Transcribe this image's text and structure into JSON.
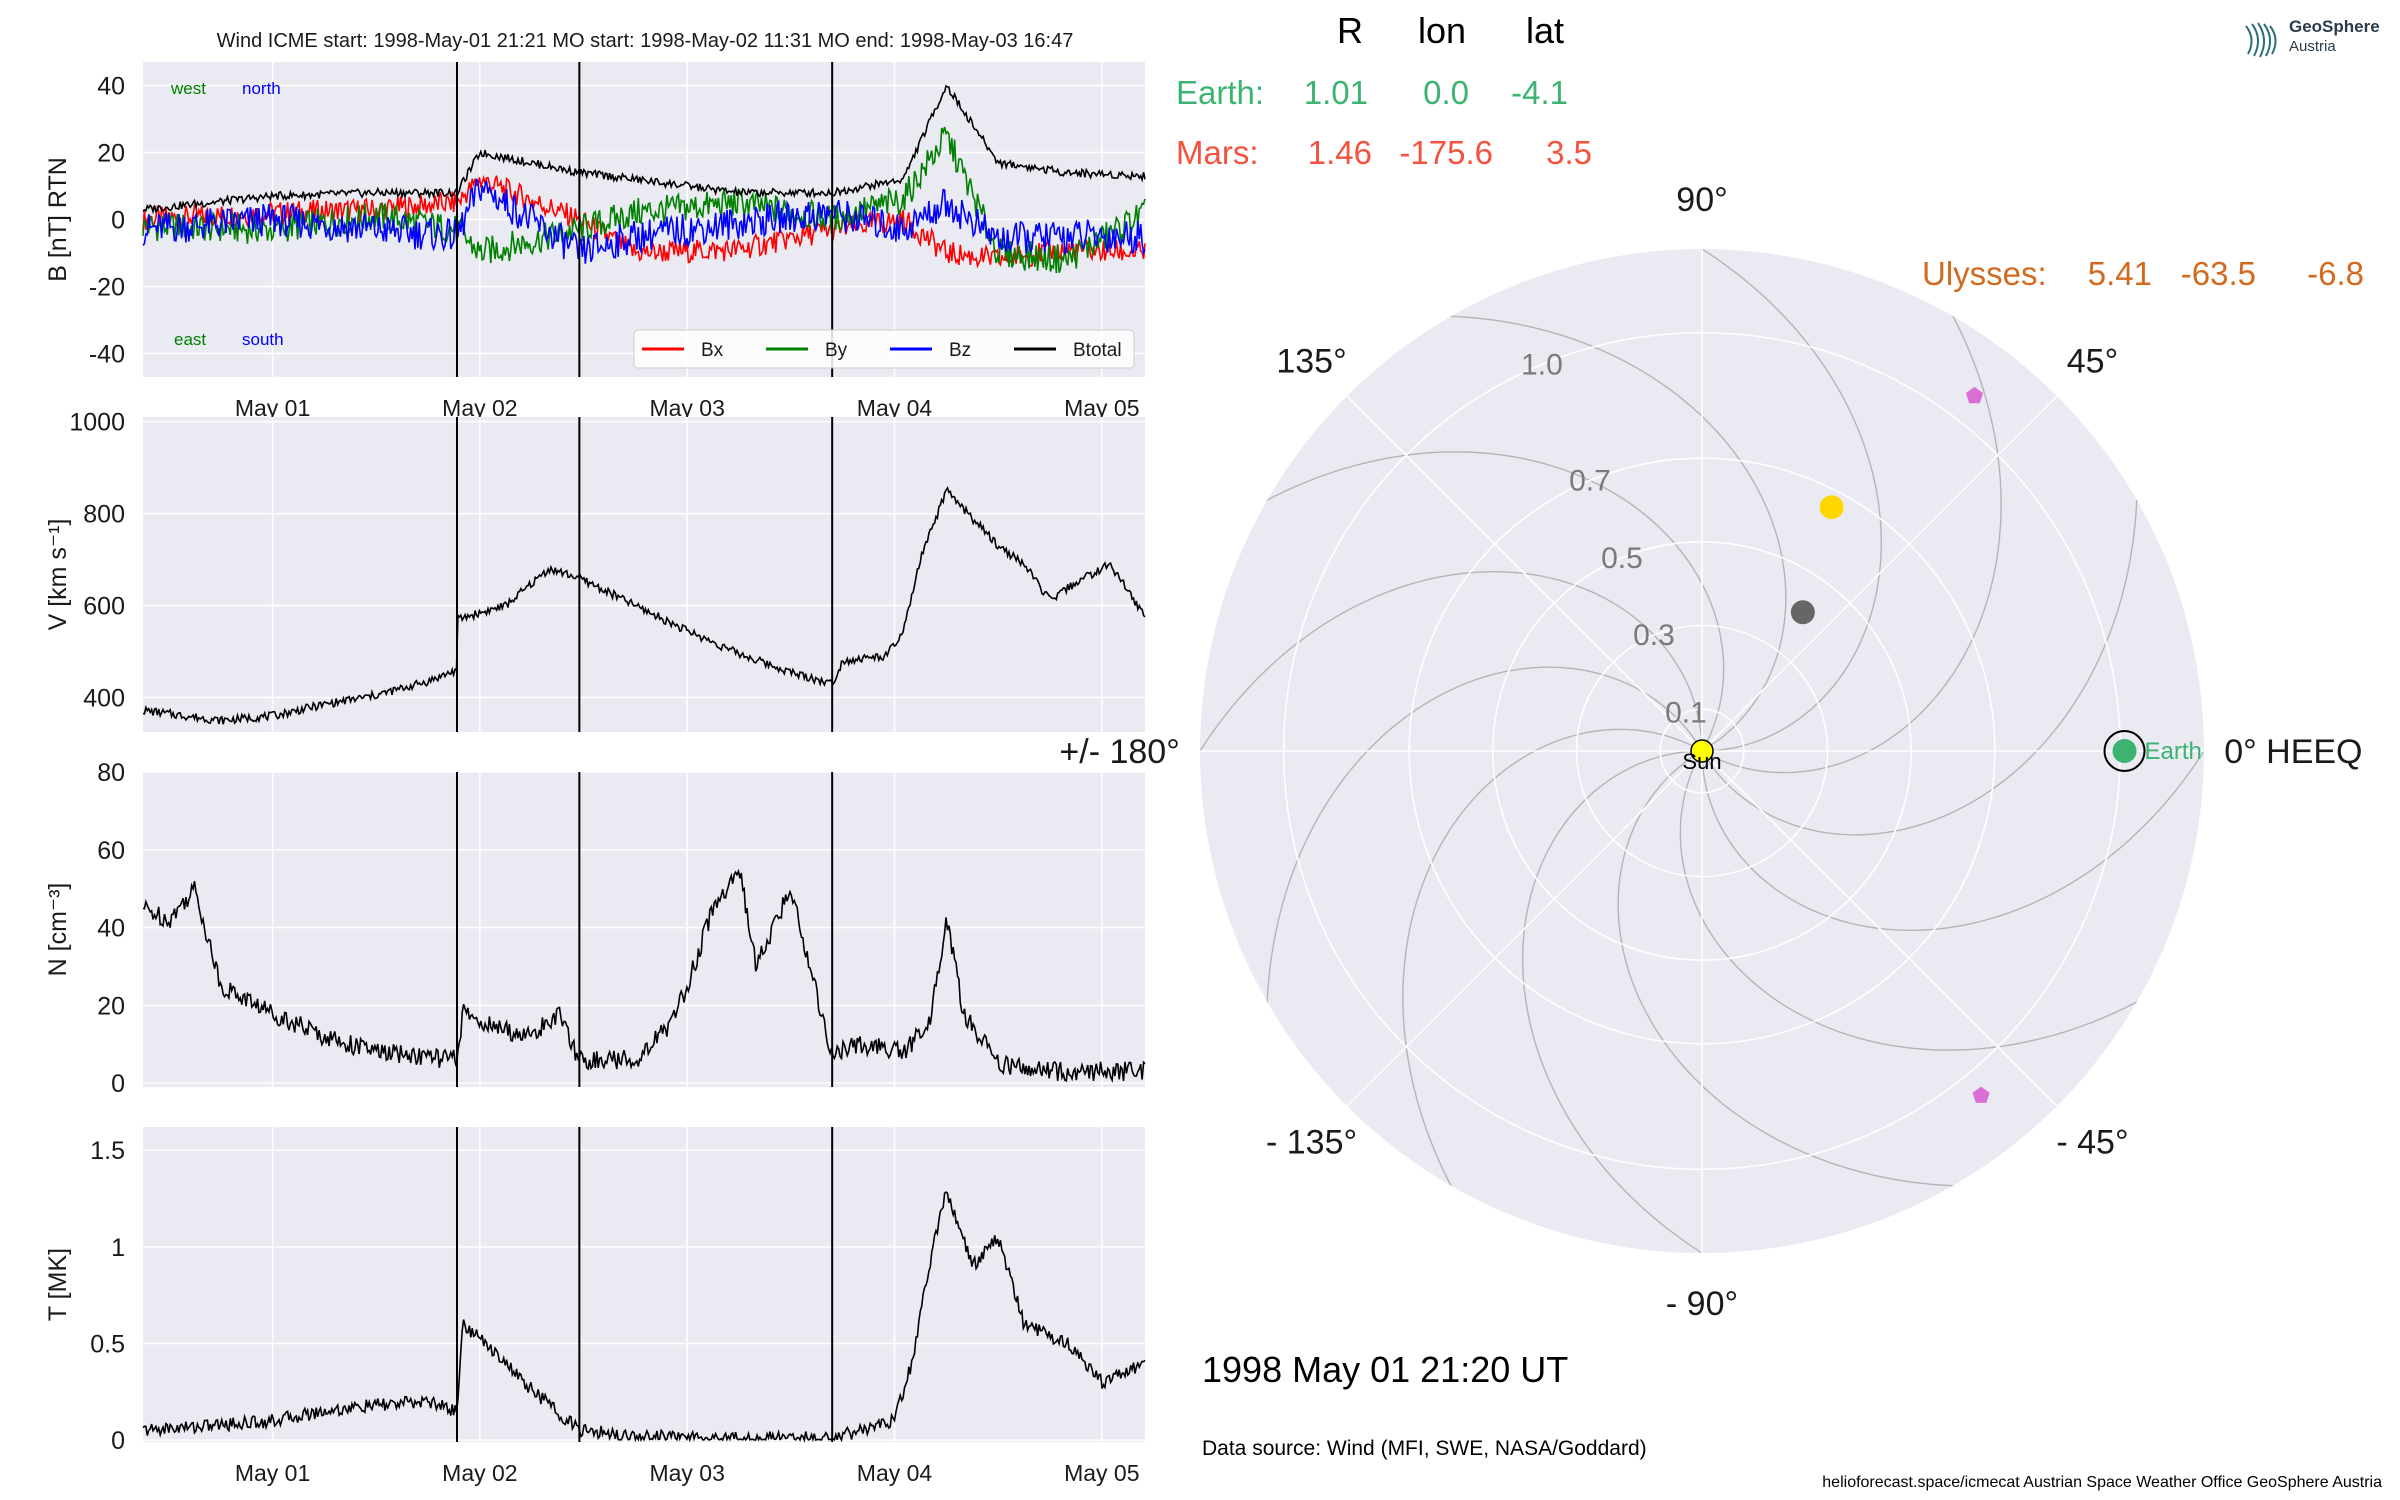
{
  "window": {
    "title": "Wind    ICME start: 1998-May-01 21:21   MO start: 1998-May-02 11:31   MO end: 1998-May-03 16:47"
  },
  "logo": {
    "line1": "GeoSphere",
    "line2": "Austria"
  },
  "colors": {
    "panel_bg": "#eaeaf2",
    "grid": "#ffffff",
    "bx": "#ff0000",
    "by": "#008000",
    "bz": "#0000ff",
    "btotal": "#000000",
    "earth": "#3cb371",
    "mars": "#f4513f",
    "ulysses": "#d2691e",
    "sun": "#ffff00",
    "planet_gray": "#666666",
    "planet_yellow": "#ffd700",
    "probe": "#da70d6"
  },
  "chart_data": [
    {
      "type": "line",
      "title": "Wind    ICME start: 1998-May-01 21:21   MO start: 1998-May-02 11:31   MO end: 1998-May-03 16:47",
      "ylabel": "B [nT] RTN",
      "ylim": [
        -47,
        47
      ],
      "yticks": [
        40,
        20,
        0,
        -20,
        -40
      ],
      "xlim": [
        "1998-04-30 09:00",
        "1998-05-05 05:00"
      ],
      "xticks": [
        "May 01",
        "May 02",
        "May 03",
        "May 04",
        "May 05"
      ],
      "annotations": {
        "west": "west",
        "north": "north",
        "east": "east",
        "south": "south"
      },
      "legend": {
        "placement": "lower-right",
        "entries": [
          "Bx",
          "By",
          "Bz",
          "Btotal"
        ]
      },
      "event_lines": [
        "1998-05-01 21:21",
        "1998-05-02 11:31",
        "1998-05-03 16:47"
      ],
      "x": [
        "1998-04-30 09:00",
        "1998-05-01 00:00",
        "1998-05-01 12:00",
        "1998-05-01 21:21",
        "1998-05-02 00:00",
        "1998-05-02 11:31",
        "1998-05-02 18:00",
        "1998-05-03 06:00",
        "1998-05-03 16:47",
        "1998-05-04 01:00",
        "1998-05-04 06:00",
        "1998-05-04 12:00",
        "1998-05-04 20:00",
        "1998-05-05 05:00"
      ],
      "series": [
        {
          "name": "Bx",
          "values": [
            0,
            2,
            3,
            5,
            12,
            0,
            -10,
            -9,
            -3,
            0,
            -10,
            -12,
            -9,
            -10
          ]
        },
        {
          "name": "By",
          "values": [
            -2,
            -3,
            1,
            -3,
            -10,
            -3,
            2,
            5,
            0,
            6,
            25,
            -10,
            -12,
            2
          ]
        },
        {
          "name": "Bz",
          "values": [
            -3,
            0,
            -3,
            -5,
            10,
            -10,
            -5,
            -1,
            2,
            -3,
            5,
            -6,
            -5,
            -5
          ]
        },
        {
          "name": "Btotal",
          "values": [
            3,
            7,
            8,
            8,
            20,
            14,
            12,
            8,
            8,
            12,
            40,
            17,
            14,
            13
          ]
        }
      ]
    },
    {
      "type": "line",
      "ylabel": "V [km s⁻¹]",
      "ylim": [
        325,
        1010
      ],
      "yticks": [
        1000,
        800,
        600,
        400
      ],
      "xlim": [
        "1998-04-30 09:00",
        "1998-05-05 05:00"
      ],
      "event_lines": [
        "1998-05-01 21:21",
        "1998-05-02 11:31",
        "1998-05-03 16:47"
      ],
      "series": [
        {
          "name": "V",
          "x": [
            "1998-04-30 09:00",
            "1998-04-30 18:00",
            "1998-05-01 00:00",
            "1998-05-01 06:00",
            "1998-05-01 12:00",
            "1998-05-01 18:00",
            "1998-05-01 21:20",
            "1998-05-01 21:25",
            "1998-05-02 03:00",
            "1998-05-02 08:00",
            "1998-05-02 11:31",
            "1998-05-02 18:00",
            "1998-05-03 00:00",
            "1998-05-03 06:00",
            "1998-05-03 12:00",
            "1998-05-03 16:47",
            "1998-05-03 18:00",
            "1998-05-03 23:00",
            "1998-05-04 01:00",
            "1998-05-04 03:00",
            "1998-05-04 06:00",
            "1998-05-04 09:00",
            "1998-05-04 12:00",
            "1998-05-04 15:00",
            "1998-05-04 18:00",
            "1998-05-04 21:00",
            "1998-05-05 01:00",
            "1998-05-05 05:00"
          ],
          "values": [
            372,
            350,
            360,
            385,
            405,
            435,
            460,
            570,
            600,
            680,
            660,
            600,
            545,
            495,
            455,
            430,
            480,
            490,
            540,
            700,
            850,
            790,
            730,
            690,
            610,
            650,
            690,
            575
          ]
        }
      ]
    },
    {
      "type": "line",
      "ylabel": "N [cm⁻³]",
      "ylim": [
        -1,
        80
      ],
      "yticks": [
        80,
        60,
        40,
        20,
        0
      ],
      "xlim": [
        "1998-04-30 09:00",
        "1998-05-05 05:00"
      ],
      "event_lines": [
        "1998-05-01 21:21",
        "1998-05-02 11:31",
        "1998-05-03 16:47"
      ],
      "series": [
        {
          "name": "N",
          "x": [
            "1998-04-30 09:00",
            "1998-04-30 12:00",
            "1998-04-30 15:00",
            "1998-04-30 18:00",
            "1998-05-01 00:00",
            "1998-05-01 06:00",
            "1998-05-01 12:00",
            "1998-05-01 21:20",
            "1998-05-01 22:00",
            "1998-05-02 02:00",
            "1998-05-02 06:00",
            "1998-05-02 09:00",
            "1998-05-02 11:31",
            "1998-05-02 18:00",
            "1998-05-02 22:00",
            "1998-05-03 00:00",
            "1998-05-03 03:00",
            "1998-05-03 06:00",
            "1998-05-03 08:00",
            "1998-05-03 12:00",
            "1998-05-03 16:47",
            "1998-05-03 20:00",
            "1998-05-04 01:00",
            "1998-05-04 04:00",
            "1998-05-04 06:00",
            "1998-05-04 08:00",
            "1998-05-04 12:00",
            "1998-05-04 18:00",
            "1998-05-05 05:00"
          ],
          "values": [
            45,
            42,
            50,
            25,
            18,
            12,
            8,
            6,
            18,
            14,
            12,
            18,
            6,
            6,
            15,
            25,
            45,
            55,
            30,
            50,
            7,
            10,
            8,
            15,
            42,
            18,
            5,
            3,
            3
          ]
        }
      ]
    },
    {
      "type": "line",
      "ylabel": "T [MK]",
      "ylim": [
        -0.01,
        1.62
      ],
      "yticks": [
        1.5,
        1.0,
        0.5,
        0.0
      ],
      "xlim": [
        "1998-04-30 09:00",
        "1998-05-05 05:00"
      ],
      "xticks": [
        "May 01",
        "May 02",
        "May 03",
        "May 04",
        "May 05"
      ],
      "event_lines": [
        "1998-05-01 21:21",
        "1998-05-02 11:31",
        "1998-05-03 16:47"
      ],
      "series": [
        {
          "name": "T",
          "x": [
            "1998-04-30 09:00",
            "1998-04-30 18:00",
            "1998-05-01 00:00",
            "1998-05-01 06:00",
            "1998-05-01 12:00",
            "1998-05-01 18:00",
            "1998-05-01 21:20",
            "1998-05-01 22:00",
            "1998-05-02 02:00",
            "1998-05-02 05:00",
            "1998-05-02 11:31",
            "1998-05-02 18:00",
            "1998-05-03 00:00",
            "1998-05-03 12:00",
            "1998-05-03 16:47",
            "1998-05-03 20:00",
            "1998-05-04 00:00",
            "1998-05-04 02:00",
            "1998-05-04 04:00",
            "1998-05-04 06:00",
            "1998-05-04 09:00",
            "1998-05-04 12:00",
            "1998-05-04 15:00",
            "1998-05-04 20:00",
            "1998-05-05 00:00",
            "1998-05-05 05:00"
          ],
          "values": [
            0.05,
            0.08,
            0.1,
            0.15,
            0.18,
            0.2,
            0.15,
            0.6,
            0.45,
            0.3,
            0.05,
            0.02,
            0.01,
            0.01,
            0.01,
            0.05,
            0.1,
            0.4,
            0.9,
            1.3,
            0.9,
            1.05,
            0.6,
            0.5,
            0.3,
            0.4
          ]
        }
      ]
    },
    {
      "type": "scatter",
      "polar": true,
      "angle_labels": [
        "90°",
        "45°",
        "0° HEEQ",
        "- 45°",
        "- 90°",
        "- 135°",
        "+/- 180°",
        "135°"
      ],
      "radial_ticks": [
        "0.1",
        "0.3",
        "0.5",
        "0.7",
        "1.0"
      ],
      "r_max": 1.2,
      "spirals": 12,
      "header": {
        "r": "R",
        "lon": "lon",
        "lat": "lat"
      },
      "bodies": [
        {
          "name": "Earth",
          "r": 1.01,
          "lon": 0.0,
          "lat": -4.1,
          "r_text": "1.01",
          "lon_text": "0.0",
          "lat_text": "-4.1",
          "label_text": "Earth:",
          "marker_label": "Earth",
          "color": "#3cb371"
        },
        {
          "name": "Mars",
          "r": 1.46,
          "lon": -175.6,
          "lat": 3.5,
          "r_text": "1.46",
          "lon_text": "-175.6",
          "lat_text": "3.5",
          "label_text": "Mars:",
          "color": "#f4513f"
        },
        {
          "name": "Ulysses",
          "r": 5.41,
          "lon": -63.5,
          "lat": -6.8,
          "r_text": "5.41",
          "lon_text": "-63.5",
          "lat_text": "-6.8",
          "label_text": "Ulysses:",
          "color": "#d2691e"
        }
      ],
      "markers": [
        {
          "name": "Sun",
          "r": 0.0,
          "lon": 0.0,
          "color": "#ffff00",
          "label": "Sun"
        },
        {
          "name": "planet-gray",
          "r": 0.41,
          "lon": 54.0,
          "color": "#666666"
        },
        {
          "name": "planet-yellow",
          "r": 0.66,
          "lon": 62.0,
          "color": "#ffd700"
        },
        {
          "name": "probe-upper",
          "r": 1.07,
          "lon": 52.5,
          "color": "#da70d6"
        },
        {
          "name": "probe-lower",
          "r": 1.06,
          "lon": -51.0,
          "color": "#da70d6"
        }
      ]
    }
  ],
  "date_label": "1998 May 01  21:20 UT",
  "source_label": "Data source: Wind (MFI, SWE, NASA/Goddard)",
  "footer": "helioforecast.space/icmecat   Austrian Space Weather Office   GeoSphere Austria"
}
